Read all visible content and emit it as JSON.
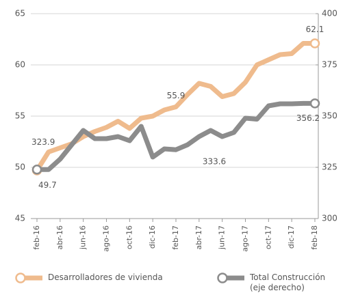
{
  "chart_data": {
    "type": "line",
    "categories": [
      "feb-16",
      null,
      "abr-16",
      null,
      "jun-16",
      null,
      "ago-16",
      null,
      "oct-16",
      null,
      "dic-16",
      null,
      "feb-17",
      null,
      "abr-17",
      null,
      "jun-17",
      null,
      "ago-17",
      null,
      "oct-17",
      null,
      "dic-17",
      null,
      "feb-18"
    ],
    "series": [
      {
        "name": "Desarrolladores de vivienda",
        "color": "#efbb8d",
        "axis": "y",
        "values": [
          49.7,
          51.5,
          51.9,
          52.3,
          53.0,
          53.5,
          53.9,
          54.5,
          53.8,
          54.8,
          55.0,
          55.6,
          55.9,
          57.1,
          58.2,
          57.9,
          56.9,
          57.2,
          58.3,
          60.0,
          60.5,
          61.0,
          61.1,
          62.1,
          62.1
        ],
        "data_labels": [
          0,
          12,
          24
        ]
      },
      {
        "name": "Total Construcción (eje derecho)",
        "color": "#8c8c8c",
        "axis": "y2",
        "values": [
          323.9,
          323.9,
          329,
          336,
          343,
          339,
          339,
          340,
          338,
          345,
          330,
          334,
          333.6,
          336,
          340,
          343,
          340,
          342,
          349,
          348.5,
          355,
          356,
          356,
          356.2,
          356.2
        ],
        "data_labels": [
          0,
          12,
          24
        ]
      }
    ],
    "ylim": [
      45,
      65
    ],
    "yticks": [
      45,
      50,
      55,
      60,
      65
    ],
    "y2lim": [
      300,
      400
    ],
    "y2ticks": [
      300,
      325,
      350,
      375,
      400
    ],
    "grid": true
  }
}
